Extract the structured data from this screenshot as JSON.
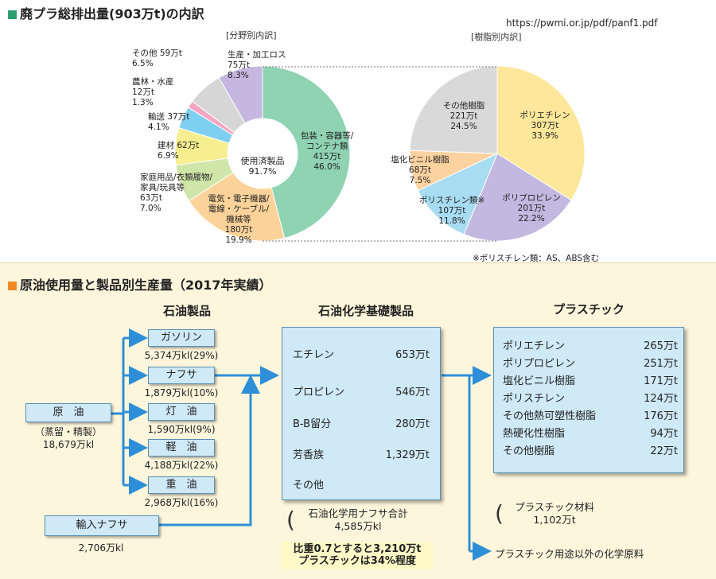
{
  "url": "https://pwmi.or.jp/pdf/panf1.pdf",
  "top_section": {
    "title": "廃プラ総排出量(903万t)の内訳",
    "accent": "#2e9e6e"
  },
  "chart_data": [
    {
      "type": "pie",
      "title": "[分野別内訳]",
      "center_label": "使用済製品\n91.7%",
      "slices": [
        {
          "label": "包装・容器等/\nコンテナ類\n415万t\n46.0%",
          "value": 415,
          "percent": 46.0,
          "color": "#8fd3b2"
        },
        {
          "label": "電気・電子機器/\n電線・ケーブル/\n機械等\n180万t\n19.9%",
          "value": 180,
          "percent": 19.9,
          "color": "#fbd39a"
        },
        {
          "label": "家庭用品/衣類履物/\n家具/玩具等\n63万t\n7.0%",
          "value": 63,
          "percent": 7.0,
          "color": "#cfe6a8"
        },
        {
          "label": "建材 62万t\n6.9%",
          "value": 62,
          "percent": 6.9,
          "color": "#f7ee8f"
        },
        {
          "label": "輸送 37万t\n4.1%",
          "value": 37,
          "percent": 4.1,
          "color": "#7fcff0"
        },
        {
          "label": "農林・水産\n12万t\n1.3%",
          "value": 12,
          "percent": 1.3,
          "color": "#f4a6c3"
        },
        {
          "label": "その他 59万t\n6.5%",
          "value": 59,
          "percent": 6.5,
          "color": "#d6d6d6"
        },
        {
          "label": "生産・加工ロス\n75万t\n8.3%",
          "value": 75,
          "percent": 8.3,
          "color": "#c5b7e0"
        }
      ]
    },
    {
      "type": "pie",
      "title": "[樹脂別内訳]",
      "note": "※ポリスチレン類：AS、ABS含む",
      "slices": [
        {
          "label": "ポリエチレン\n307万t\n33.9%",
          "value": 307,
          "percent": 33.9,
          "color": "#fde79a"
        },
        {
          "label": "ポリプロピレン\n201万t\n22.2%",
          "value": 201,
          "percent": 22.2,
          "color": "#c3b8e0"
        },
        {
          "label": "ポリスチレン類※\n107万t\n11.8%",
          "value": 107,
          "percent": 11.8,
          "color": "#a8dcf2"
        },
        {
          "label": "塩化ビニル樹脂\n68万t\n7.5%",
          "value": 68,
          "percent": 7.5,
          "color": "#fcd3a0"
        },
        {
          "label": "その他樹脂\n221万t\n24.5%",
          "value": 221,
          "percent": 24.5,
          "color": "#d9d9d9"
        }
      ]
    }
  ],
  "flow": {
    "title": "原油使用量と製品別生産量（2017年実績）",
    "accent": "#f08a24",
    "background": "#fdf6dc",
    "box_color": "#cfe9f6",
    "arrow_color": "#2e8fd8",
    "col_petroleum": "石油製品",
    "col_petrochem": "石油化学基礎製品",
    "col_plastic": "プラスチック",
    "crude": {
      "label": "原　油",
      "sub": "（蒸留・精製）",
      "amount": "18,679万kl"
    },
    "import_naphtha": {
      "label": "輸入ナフサ",
      "amount": "2,706万kl"
    },
    "products": [
      {
        "label": "ガソリン",
        "amount": "5,374万kl(29%)"
      },
      {
        "label": "ナフサ",
        "amount": "1,879万kl(10%)"
      },
      {
        "label": "灯　油",
        "amount": "1,590万kl(9%)"
      },
      {
        "label": "軽　油",
        "amount": "4,188万kl(22%)"
      },
      {
        "label": "重　油",
        "amount": "2,968万kl(16%)"
      }
    ],
    "petrochem": [
      {
        "name": "エチレン",
        "amount": "653万t"
      },
      {
        "name": "プロピレン",
        "amount": "546万t"
      },
      {
        "name": "B-B留分",
        "amount": "280万t"
      },
      {
        "name": "芳香族",
        "amount": "1,329万t"
      },
      {
        "name": "その他",
        "amount": ""
      }
    ],
    "naphtha_total": {
      "line1": "石油化学用ナフサ合計",
      "line2": "4,585万kl"
    },
    "note_line1": "比重0.7とすると3,210万t",
    "note_line2": "プラスチックは34%程度",
    "plastics": [
      {
        "name": "ポリエチレン",
        "amount": "265万t"
      },
      {
        "name": "ポリプロピレン",
        "amount": "251万t"
      },
      {
        "name": "塩化ビニル樹脂",
        "amount": "171万t"
      },
      {
        "name": "ポリスチレン",
        "amount": "124万t"
      },
      {
        "name": "その他熱可塑性樹脂",
        "amount": "176万t"
      },
      {
        "name": "熱硬化性樹脂",
        "amount": "94万t"
      },
      {
        "name": "その他樹脂",
        "amount": "22万t"
      }
    ],
    "plastic_material": {
      "line1": "プラスチック材料",
      "line2": "1,102万t"
    },
    "chem_raw": "プラスチック用途以外の化学原料"
  }
}
